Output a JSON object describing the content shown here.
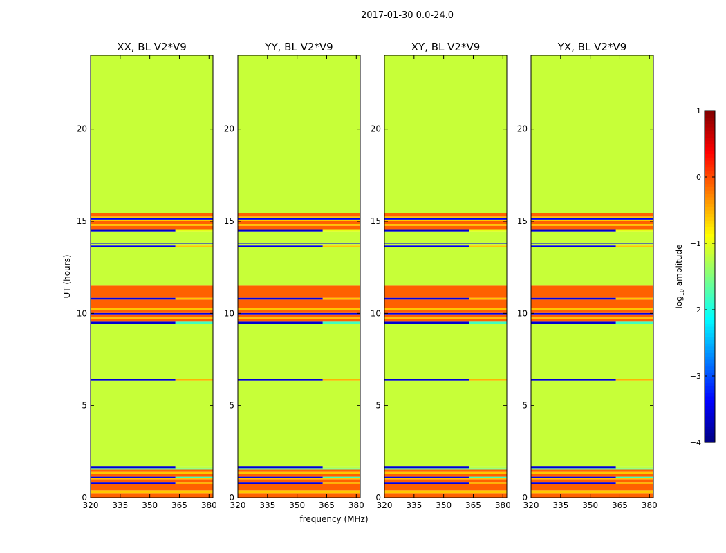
{
  "figure": {
    "suptitle": "2017-01-30 0.0-24.0",
    "xlabel": "frequency (MHz)",
    "ylabel": "UT (hours)"
  },
  "chart_data": {
    "type": "heatmap",
    "title": "2017-01-30 0.0-24.0",
    "xlabel": "frequency (MHz)",
    "ylabel": "UT (hours)",
    "xlim": [
      320,
      382
    ],
    "ylim": [
      0,
      24
    ],
    "xticks": [
      320,
      335,
      350,
      365,
      380
    ],
    "yticks": [
      0,
      5,
      10,
      15,
      20
    ],
    "panels": [
      {
        "title": "XX, BL V2*V9"
      },
      {
        "title": "YY, BL V2*V9"
      },
      {
        "title": "XY, BL V2*V9"
      },
      {
        "title": "YX, BL V2*V9"
      }
    ],
    "split_freq_mhz": 363,
    "bands": [
      {
        "t0": 0.0,
        "t1": 0.25,
        "value": -0.1
      },
      {
        "t0": 0.25,
        "t1": 0.4,
        "value": -0.6
      },
      {
        "t0": 0.4,
        "t1": 0.75,
        "value": -0.1
      },
      {
        "t0": 0.75,
        "t1": 0.82,
        "value": -3.5,
        "hi_value": -0.5
      },
      {
        "t0": 0.82,
        "t1": 1.0,
        "value": -0.1
      },
      {
        "t0": 1.0,
        "t1": 1.08,
        "value": -0.6
      },
      {
        "t0": 1.08,
        "t1": 1.14,
        "value": -3.5,
        "hi_value": -1.8
      },
      {
        "t0": 1.14,
        "t1": 1.3,
        "value": -0.1
      },
      {
        "t0": 1.3,
        "t1": 1.4,
        "value": -0.6
      },
      {
        "t0": 1.4,
        "t1": 1.52,
        "value": -0.1
      },
      {
        "t0": 1.52,
        "t1": 1.6,
        "value": -1.6
      },
      {
        "t0": 1.6,
        "t1": 1.72,
        "value": -3.6,
        "hi_value": -1.2
      },
      {
        "t0": 1.72,
        "t1": 6.35,
        "value": -1.15
      },
      {
        "t0": 6.35,
        "t1": 6.45,
        "value": -3.6,
        "hi_value": -0.5
      },
      {
        "t0": 6.45,
        "t1": 9.45,
        "value": -1.15
      },
      {
        "t0": 9.45,
        "t1": 9.55,
        "value": -3.6,
        "hi_value": -1.8
      },
      {
        "t0": 9.55,
        "t1": 9.7,
        "value": -0.1
      },
      {
        "t0": 9.7,
        "t1": 9.78,
        "value": -0.6
      },
      {
        "t0": 9.78,
        "t1": 9.95,
        "value": -0.1
      },
      {
        "t0": 9.95,
        "t1": 10.02,
        "value": -3.5
      },
      {
        "t0": 10.02,
        "t1": 10.2,
        "value": -0.1
      },
      {
        "t0": 10.2,
        "t1": 10.3,
        "value": -0.6
      },
      {
        "t0": 10.3,
        "t1": 10.75,
        "value": -0.1
      },
      {
        "t0": 10.75,
        "t1": 10.85,
        "value": -3.5,
        "hi_value": -0.6
      },
      {
        "t0": 10.85,
        "t1": 11.5,
        "value": -0.1
      },
      {
        "t0": 11.5,
        "t1": 13.6,
        "value": -1.15
      },
      {
        "t0": 13.6,
        "t1": 13.68,
        "value": -3.5,
        "hi_value": -0.6
      },
      {
        "t0": 13.68,
        "t1": 13.78,
        "value": -1.15
      },
      {
        "t0": 13.78,
        "t1": 13.84,
        "value": -3.5
      },
      {
        "t0": 13.84,
        "t1": 14.45,
        "value": -1.15
      },
      {
        "t0": 14.45,
        "t1": 14.53,
        "value": -3.6,
        "hi_value": -1.0
      },
      {
        "t0": 14.53,
        "t1": 14.75,
        "value": -0.1
      },
      {
        "t0": 14.75,
        "t1": 14.85,
        "value": -0.6
      },
      {
        "t0": 14.85,
        "t1": 15.0,
        "value": -0.1
      },
      {
        "t0": 15.0,
        "t1": 15.08,
        "value": -0.6
      },
      {
        "t0": 15.08,
        "t1": 15.15,
        "value": -3.5
      },
      {
        "t0": 15.15,
        "t1": 15.25,
        "value": -0.6
      },
      {
        "t0": 15.25,
        "t1": 15.45,
        "value": -0.1
      },
      {
        "t0": 15.45,
        "t1": 24.0,
        "value": -1.15
      }
    ],
    "colorbar": {
      "label": "log10 amplitude",
      "label_main": "log",
      "label_sub": "10",
      "label_rest": " amplitude",
      "vmin": -4,
      "vmax": 1,
      "ticks": [
        1,
        0,
        -1,
        -2,
        -3,
        -4
      ],
      "tick_labels": [
        "1",
        "0",
        "−1",
        "−2",
        "−3",
        "−4"
      ],
      "colormap": "jet"
    }
  }
}
